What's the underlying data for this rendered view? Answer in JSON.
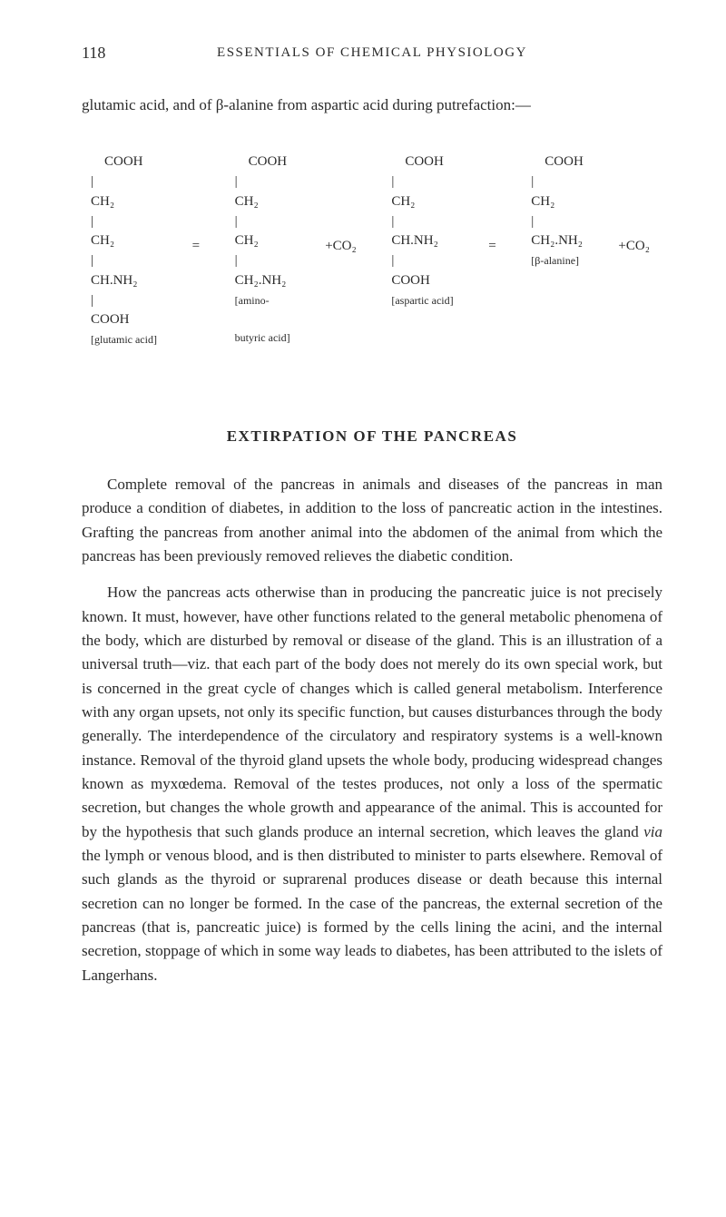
{
  "page": {
    "number": "118",
    "running_header": "ESSENTIALS OF CHEMICAL PHYSIOLOGY"
  },
  "intro": "glutamic acid, and of β-alanine from aspartic acid during putre­faction:—",
  "formula": {
    "col1": {
      "l1": "COOH",
      "l2": "|",
      "l3": "CH₂",
      "l4": "|",
      "l5": "CH₂",
      "l6": "|",
      "l7": "CH.NH₂",
      "l8": "|",
      "l9": "COOH",
      "label": "[glutamic acid]"
    },
    "eq1": "=",
    "col2": {
      "l1": "COOH",
      "l2": "|",
      "l3": "CH₂",
      "l4": "|",
      "l5": "CH₂",
      "l6": "|",
      "l7": "CH₂.NH₂",
      "label1": "[amino-",
      "label2": "butyric acid]"
    },
    "plus1": "+CO₂",
    "col3": {
      "l1": "COOH",
      "l2": "|",
      "l3": "CH₂",
      "l4": "|",
      "l5": "CH.NH₂",
      "l6": "|",
      "l7": "COOH",
      "label": "[aspartic acid]"
    },
    "eq2": "=",
    "col4": {
      "l1": "COOH",
      "l2": "|",
      "l3": "CH₂",
      "l4": "|",
      "l5": "CH₂.NH₂",
      "label": "[β-alanine]"
    },
    "plus2": "+CO₂"
  },
  "heading": "EXTIRPATION OF THE PANCREAS",
  "para1": "Complete removal of the pancreas in animals and diseases of the pancreas in man produce a condition of diabetes, in addition to the loss of pancreatic action in the intestines. Grafting the pancreas from another animal into the abdomen of the animal from which the pancreas has been previously removed relieves the diabetic condition.",
  "para2_a": "How the pancreas acts otherwise than in producing the pancreatic juice is not precisely known. It must, however, have other functions related to the general metabolic phenomena of the body, which are disturbed by removal or disease of the gland. This is an illustration of a universal truth—viz. that each part of the body does not merely do its own special work, but is concerned in the great cycle of changes which is called general metabolism. Interference with any organ upsets, not only its specific function, but causes disturbances through the body generally. The interdependence of the circulatory and respiratory systems is a well-known instance. Removal of the thyroid gland upsets the whole body, producing widespread changes known as myxœdema. Removal of the testes produces, not only a loss of the spermatic secretion, but changes the whole growth and appearance of the animal. This is accounted for by the hypothesis that such glands produce an internal secretion, which leaves the gland ",
  "para2_via": "via",
  "para2_b": " the lymph or venous blood, and is then distributed to minister to parts elsewhere. Removal of such glands as the thyroid or suprarenal produces disease or death because this internal secretion can no longer be formed. In the case of the pancreas, the external secretion of the pancreas (that is, pancreatic juice) is formed by the cells lining the acini, and the internal secretion, stoppage of which in some way leads to diabetes, has been attributed to the islets of Langerhans."
}
